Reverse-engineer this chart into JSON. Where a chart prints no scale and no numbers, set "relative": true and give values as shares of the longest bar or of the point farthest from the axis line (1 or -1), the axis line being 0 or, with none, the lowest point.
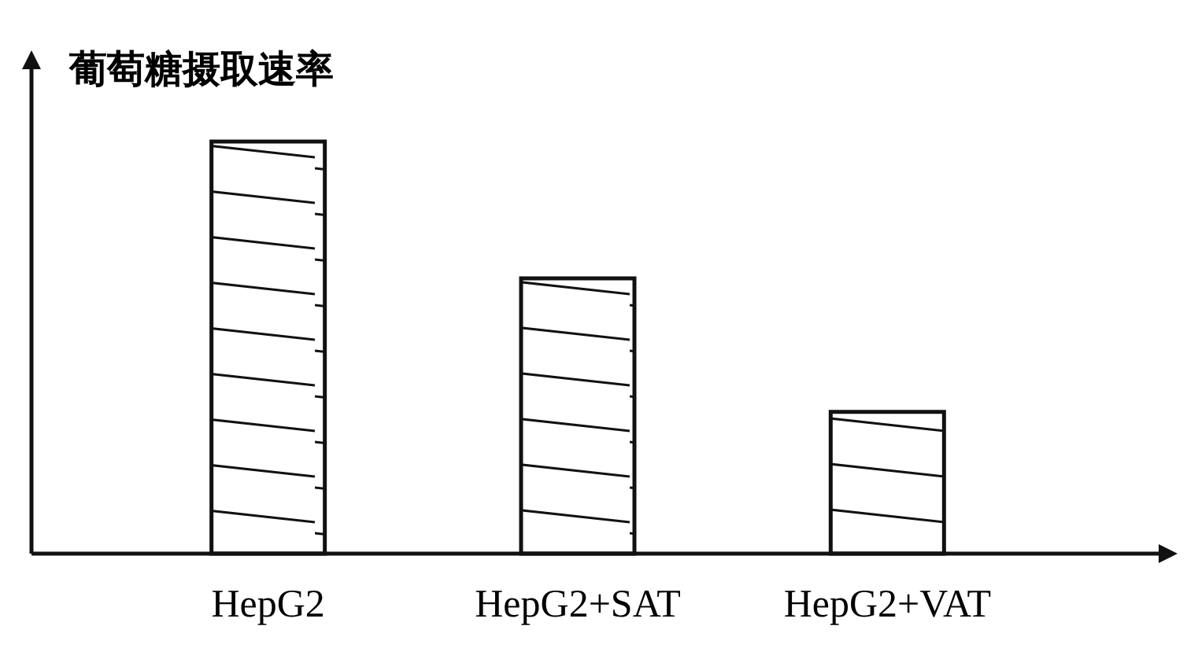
{
  "chart_data": {
    "type": "bar",
    "ylabel": "葡萄糖摄取速率",
    "categories": [
      "HepG2",
      "HepG2+SAT",
      "HepG2+VAT"
    ],
    "values": [
      1,
      0.668,
      0.344
    ],
    "color": "#111111",
    "relative": true
  }
}
